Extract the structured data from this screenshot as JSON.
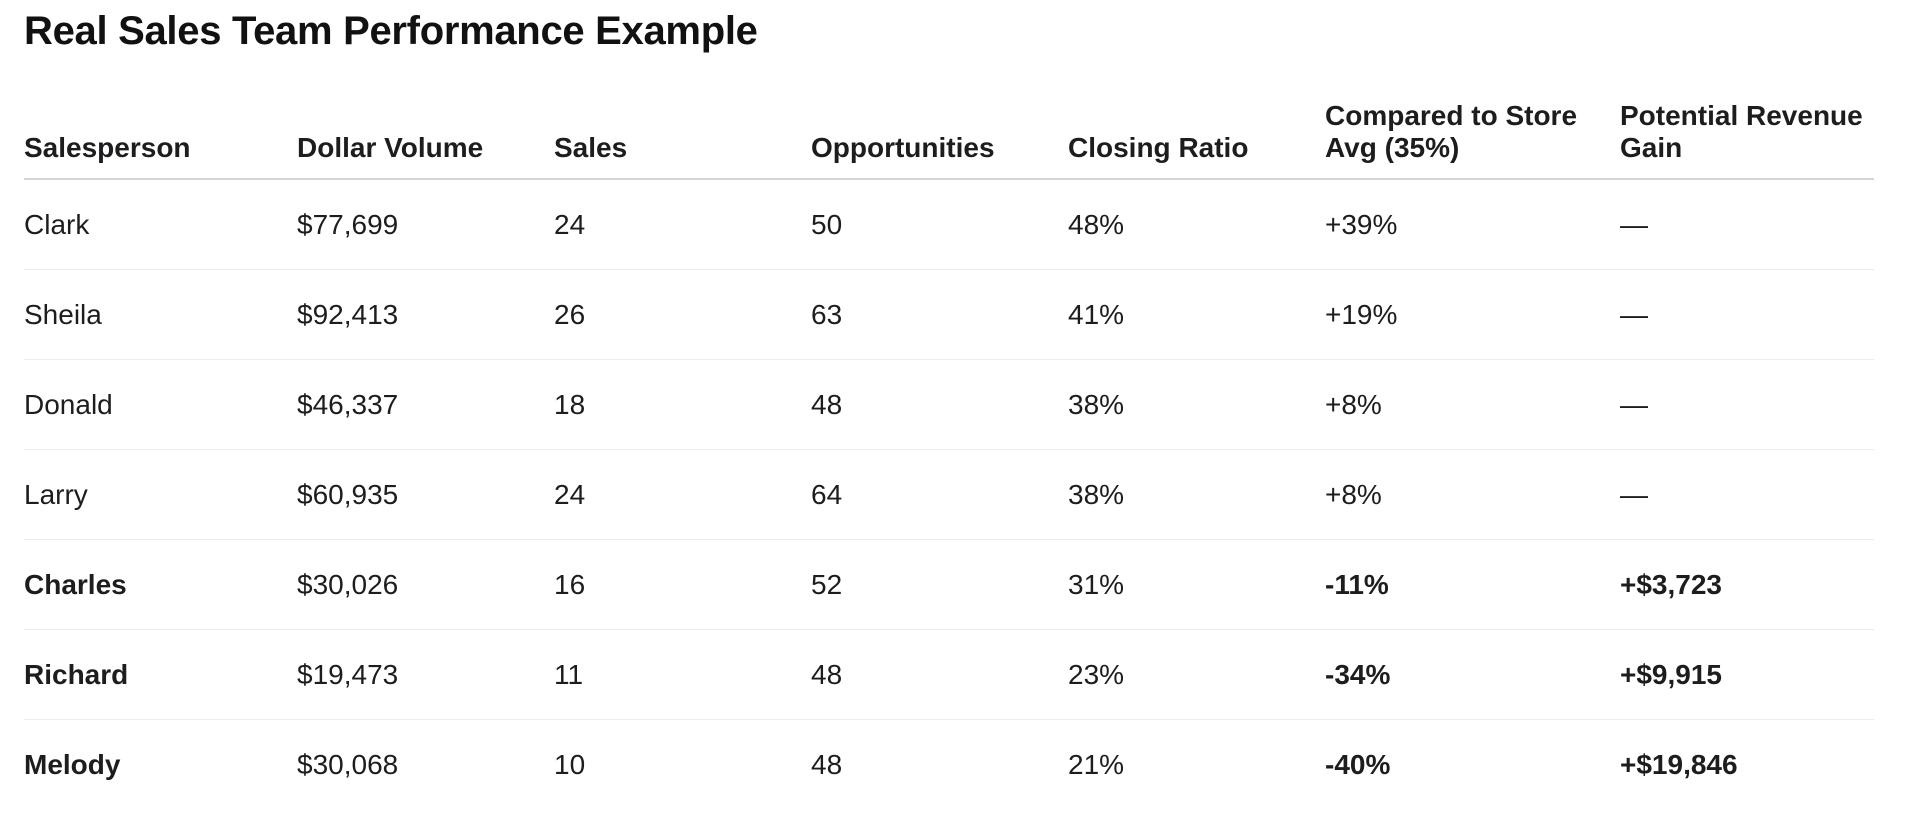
{
  "page": {
    "title": "Real Sales Team Performance Example"
  },
  "table": {
    "headers": [
      "Salesperson",
      "Dollar Volume",
      "Sales",
      "Opportunities",
      "Closing Ratio",
      "Compared to Store Avg (35%)",
      "Potential Revenue Gain"
    ],
    "rows": [
      {
        "salesperson": "Clark",
        "dollar_volume": "$77,699",
        "sales": "24",
        "opportunities": "50",
        "closing_ratio": "48%",
        "compared": "+39%",
        "gain": "—",
        "highlight": false
      },
      {
        "salesperson": "Sheila",
        "dollar_volume": "$92,413",
        "sales": "26",
        "opportunities": "63",
        "closing_ratio": "41%",
        "compared": "+19%",
        "gain": "—",
        "highlight": false
      },
      {
        "salesperson": "Donald",
        "dollar_volume": "$46,337",
        "sales": "18",
        "opportunities": "48",
        "closing_ratio": "38%",
        "compared": "+8%",
        "gain": "—",
        "highlight": false
      },
      {
        "salesperson": "Larry",
        "dollar_volume": "$60,935",
        "sales": "24",
        "opportunities": "64",
        "closing_ratio": "38%",
        "compared": "+8%",
        "gain": "—",
        "highlight": false
      },
      {
        "salesperson": "Charles",
        "dollar_volume": "$30,026",
        "sales": "16",
        "opportunities": "52",
        "closing_ratio": "31%",
        "compared": "-11%",
        "gain": "+$3,723",
        "highlight": true
      },
      {
        "salesperson": "Richard",
        "dollar_volume": "$19,473",
        "sales": "11",
        "opportunities": "48",
        "closing_ratio": "23%",
        "compared": "-34%",
        "gain": "+$9,915",
        "highlight": true
      },
      {
        "salesperson": "Melody",
        "dollar_volume": "$30,068",
        "sales": "10",
        "opportunities": "48",
        "closing_ratio": "21%",
        "compared": "-40%",
        "gain": "+$19,846",
        "highlight": true
      }
    ]
  }
}
